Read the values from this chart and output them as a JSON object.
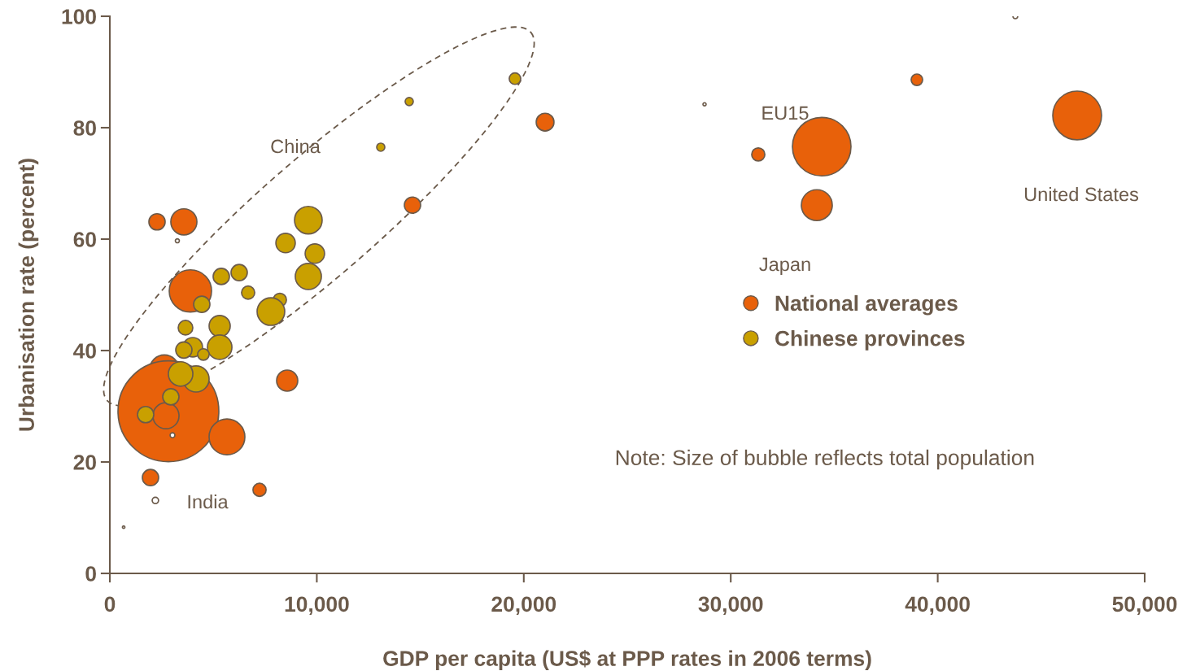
{
  "chart_data": {
    "type": "bubble",
    "xlabel": "GDP per capita (US$ at PPP rates in 2006 terms)",
    "ylabel": "Urbanisation rate (percent)",
    "xlim": [
      0,
      50000
    ],
    "ylim": [
      0,
      100
    ],
    "xticks": [
      0,
      {
        "value": 10000,
        "label": "10,000"
      },
      {
        "value": 20000,
        "label": "20,000"
      },
      {
        "value": 30000,
        "label": "30,000"
      },
      {
        "value": 40000,
        "label": "40,000"
      },
      {
        "value": 50000,
        "label": "50,000"
      }
    ],
    "yticks": [
      0,
      20,
      40,
      60,
      80,
      100
    ],
    "grid": false,
    "legend": "center right",
    "series": [
      {
        "name": "National averages",
        "color": "#e8610a",
        "x": [
          2280,
          3577,
          3892,
          2634,
          2830,
          2712,
          5660,
          1965,
          7233,
          8569,
          14623,
          21030,
          31330,
          34395,
          34159,
          46737,
          38994
        ],
        "values": [
          63.1,
          63.1,
          50.7,
          36.6,
          29.1,
          28.3,
          24.5,
          17.2,
          15.0,
          34.6,
          66.1,
          81.0,
          75.2,
          76.6,
          66.1,
          82.2,
          88.6
        ],
        "sizes": [
          0.026,
          0.067,
          0.176,
          0.084,
          1,
          0.067,
          0.126,
          0.026,
          0.017,
          0.044,
          0.026,
          0.031,
          0.017,
          0.337,
          0.094,
          0.234,
          0.013
        ]
      },
      {
        "name": "Chinese provinces",
        "color": "#c9a000",
        "x": [
          19575,
          14465,
          13090,
          9591,
          8491,
          9906,
          9591,
          5385,
          6250,
          6682,
          8215,
          7783,
          4442,
          3656,
          5307,
          5307,
          4009,
          3577,
          4520,
          4167,
          3420,
          2948,
          1730
        ],
        "values": [
          88.8,
          84.7,
          76.5,
          63.4,
          59.3,
          57.4,
          53.3,
          53.3,
          54.0,
          50.4,
          49.1,
          47.0,
          48.3,
          44.1,
          44.4,
          40.6,
          40.6,
          40.1,
          39.3,
          34.9,
          35.8,
          31.7,
          28.5
        ],
        "sizes": [
          0.013,
          0.0065,
          0.0065,
          0.075,
          0.037,
          0.037,
          0.067,
          0.026,
          0.026,
          0.017,
          0.017,
          0.075,
          0.026,
          0.021,
          0.044,
          0.059,
          0.037,
          0.026,
          0.013,
          0.067,
          0.059,
          0.026,
          0.026
        ]
      },
      {
        "color": "#ffffff",
        "x": [
          2200,
          3262,
          3027,
          43750,
          28734,
          668
        ],
        "values": [
          13.1,
          59.7,
          24.8,
          100,
          84.2,
          8.3
        ],
        "sizes": [
          0.004,
          0.0016,
          0.0023,
          0.0023,
          0.001,
          0.0006
        ]
      }
    ],
    "annotations": [
      "China",
      "India",
      "Japan",
      "EU15",
      "United States",
      "Note: Size of bubble reflects total population"
    ]
  }
}
